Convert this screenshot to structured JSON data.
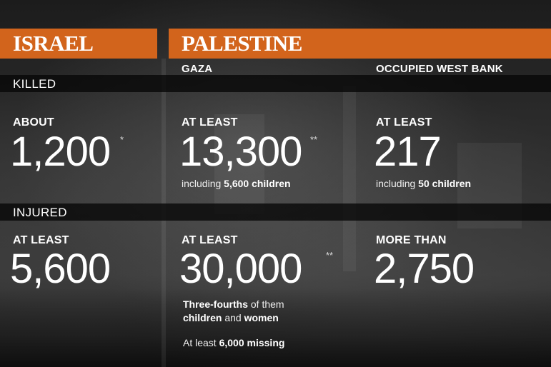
{
  "israel": {
    "header": "ISRAEL",
    "killed": {
      "qualifier": "ABOUT",
      "number": "1,200",
      "mark": "*"
    },
    "injured": {
      "qualifier": "AT LEAST",
      "number": "5,600"
    }
  },
  "palestine": {
    "header": "PALESTINE",
    "gaza": {
      "label": "GAZA",
      "killed": {
        "qualifier": "AT LEAST",
        "number": "13,300",
        "mark": "**",
        "note_prefix": "including ",
        "note_bold": "5,600 children"
      },
      "injured": {
        "qualifier": "AT LEAST",
        "number": "30,000",
        "mark": "**",
        "note1_bold_a": "Three-fourths",
        "note1_text_a": " of them",
        "note1_bold_b": "children",
        "note1_text_b": " and ",
        "note1_bold_c": "women",
        "note2_prefix": "At least ",
        "note2_bold": "6,000 missing"
      }
    },
    "west_bank": {
      "label": "OCCUPIED WEST BANK",
      "killed": {
        "qualifier": "AT LEAST",
        "number": "217",
        "note_prefix": "including ",
        "note_bold": "50 children"
      },
      "injured": {
        "qualifier": "MORE THAN",
        "number": "2,750"
      }
    }
  },
  "bands": {
    "killed": "KILLED",
    "injured": "INJURED"
  },
  "colors": {
    "banner": "#d2641c",
    "band": "#080808"
  }
}
